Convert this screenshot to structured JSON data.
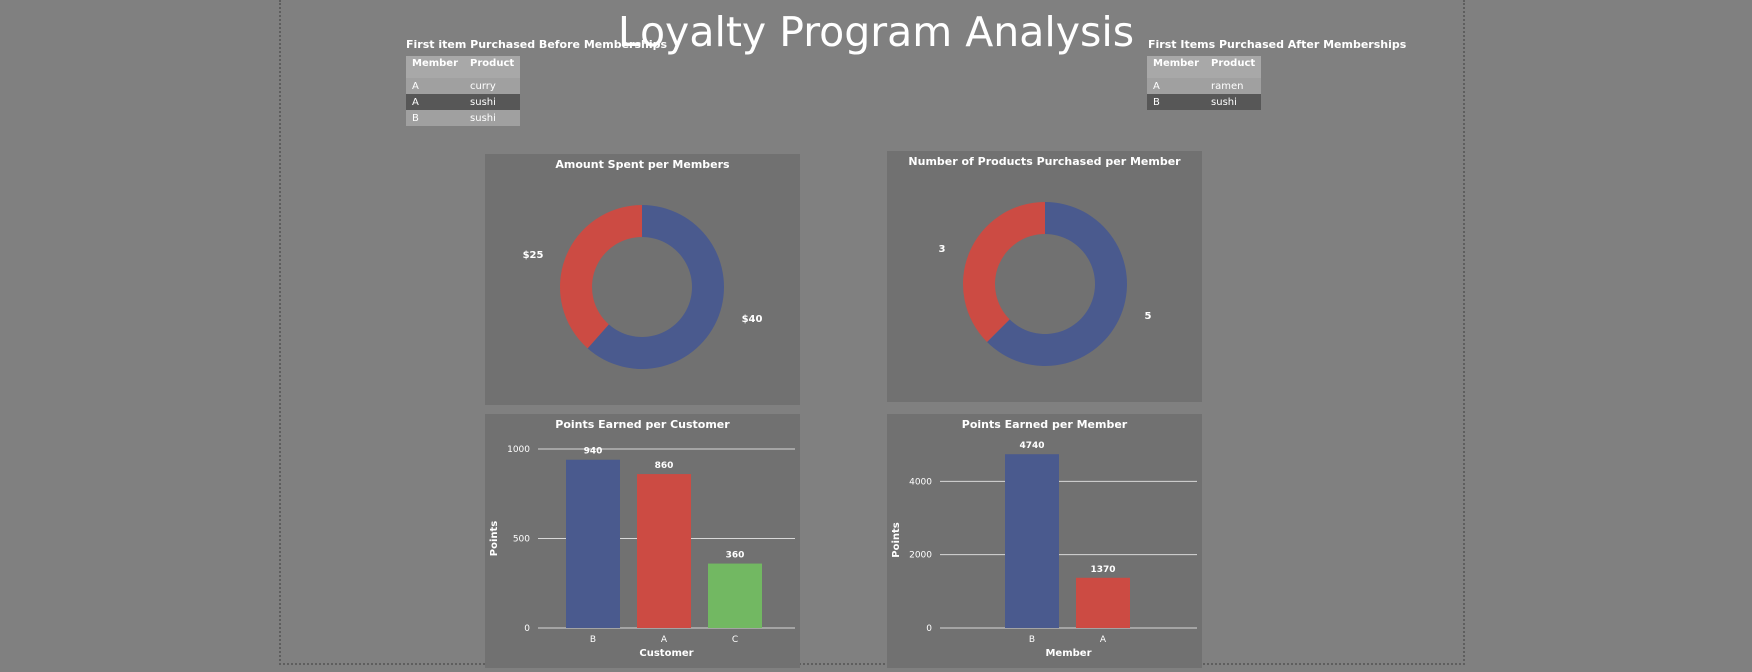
{
  "title": "Loyalty Program Analysis",
  "colors": {
    "blue": "#4a5a8e",
    "red": "#cc4b43",
    "green": "#72b862",
    "panel": "#717171",
    "background": "#808080"
  },
  "before_table": {
    "title": "First item Purchased Before Memberships",
    "headers": [
      "Member",
      "Product"
    ],
    "rows": [
      [
        "A",
        "curry"
      ],
      [
        "A",
        "sushi"
      ],
      [
        "B",
        "sushi"
      ]
    ]
  },
  "after_table": {
    "title": "First Items Purchased After Memberships",
    "headers": [
      "Member",
      "Product"
    ],
    "rows": [
      [
        "A",
        "ramen"
      ],
      [
        "B",
        "sushi"
      ]
    ]
  },
  "chart_data": [
    {
      "type": "pie",
      "title": "Amount Spent per Members",
      "values": [
        40,
        25
      ],
      "labels": [
        "$40",
        "$25"
      ],
      "colors": [
        "#4a5a8e",
        "#cc4b43"
      ],
      "donut": true
    },
    {
      "type": "pie",
      "title": "Number of Products Purchased per Member",
      "values": [
        5,
        3
      ],
      "labels": [
        "5",
        "3"
      ],
      "colors": [
        "#4a5a8e",
        "#cc4b43"
      ],
      "donut": true
    },
    {
      "type": "bar",
      "title": "Points Earned per Customer",
      "categories": [
        "B",
        "A",
        "C"
      ],
      "values": [
        940,
        860,
        360
      ],
      "colors": [
        "#4a5a8e",
        "#cc4b43",
        "#72b862"
      ],
      "xlabel": "Customer",
      "ylabel": "Points",
      "ylim": [
        0,
        1000
      ],
      "yticks": [
        0,
        500,
        1000
      ],
      "grid": true
    },
    {
      "type": "bar",
      "title": "Points Earned per Member",
      "categories": [
        "B",
        "A"
      ],
      "values": [
        4740,
        1370
      ],
      "colors": [
        "#4a5a8e",
        "#cc4b43"
      ],
      "xlabel": "Member",
      "ylabel": "Points",
      "ylim": [
        0,
        4800
      ],
      "yticks": [
        0,
        2000,
        4000
      ],
      "grid": true
    }
  ]
}
